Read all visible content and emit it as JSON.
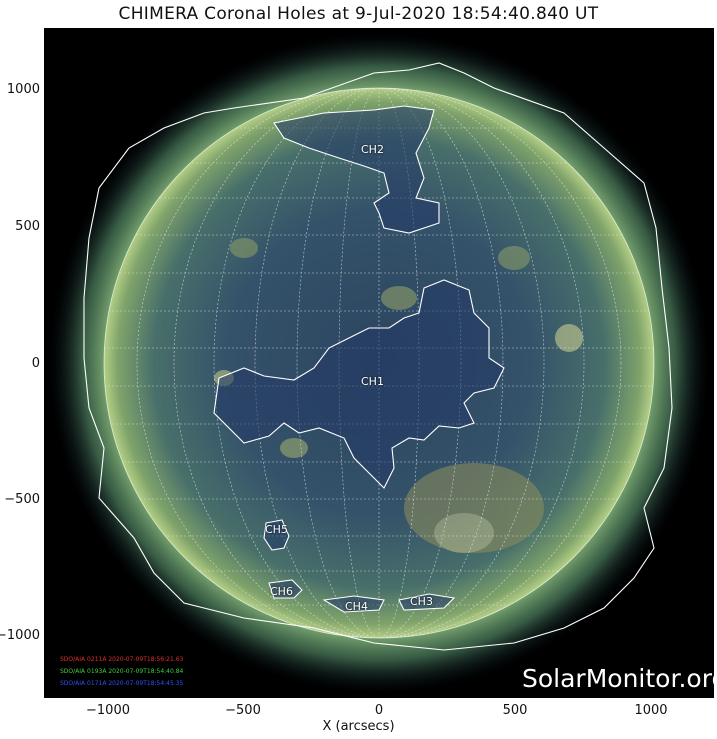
{
  "title": "CHIMERA Coronal Holes at  9-Jul-2020 18:54:40.840 UT",
  "axes": {
    "xlabel": "X (arcsecs)",
    "x_ticks": [
      "−1000",
      "−500",
      "0",
      "500",
      "1000"
    ],
    "y_ticks": [
      "1000",
      "500",
      "0",
      "−500",
      "−1000"
    ]
  },
  "coronal_holes": [
    "CH1",
    "CH2",
    "CH3",
    "CH4",
    "CH5",
    "CH6"
  ],
  "instruments": [
    {
      "text": "SDO/AIA 0211A 2020-07-09T18:56:21.63",
      "color": "#e03030"
    },
    {
      "text": "SDO/AIA 0193A 2020-07-09T18:54:40.84",
      "color": "#40d040"
    },
    {
      "text": "SDO/AIA 0171A 2020-07-09T18:54:45.35",
      "color": "#3050ff"
    }
  ],
  "watermark": "SolarMonitor.org"
}
